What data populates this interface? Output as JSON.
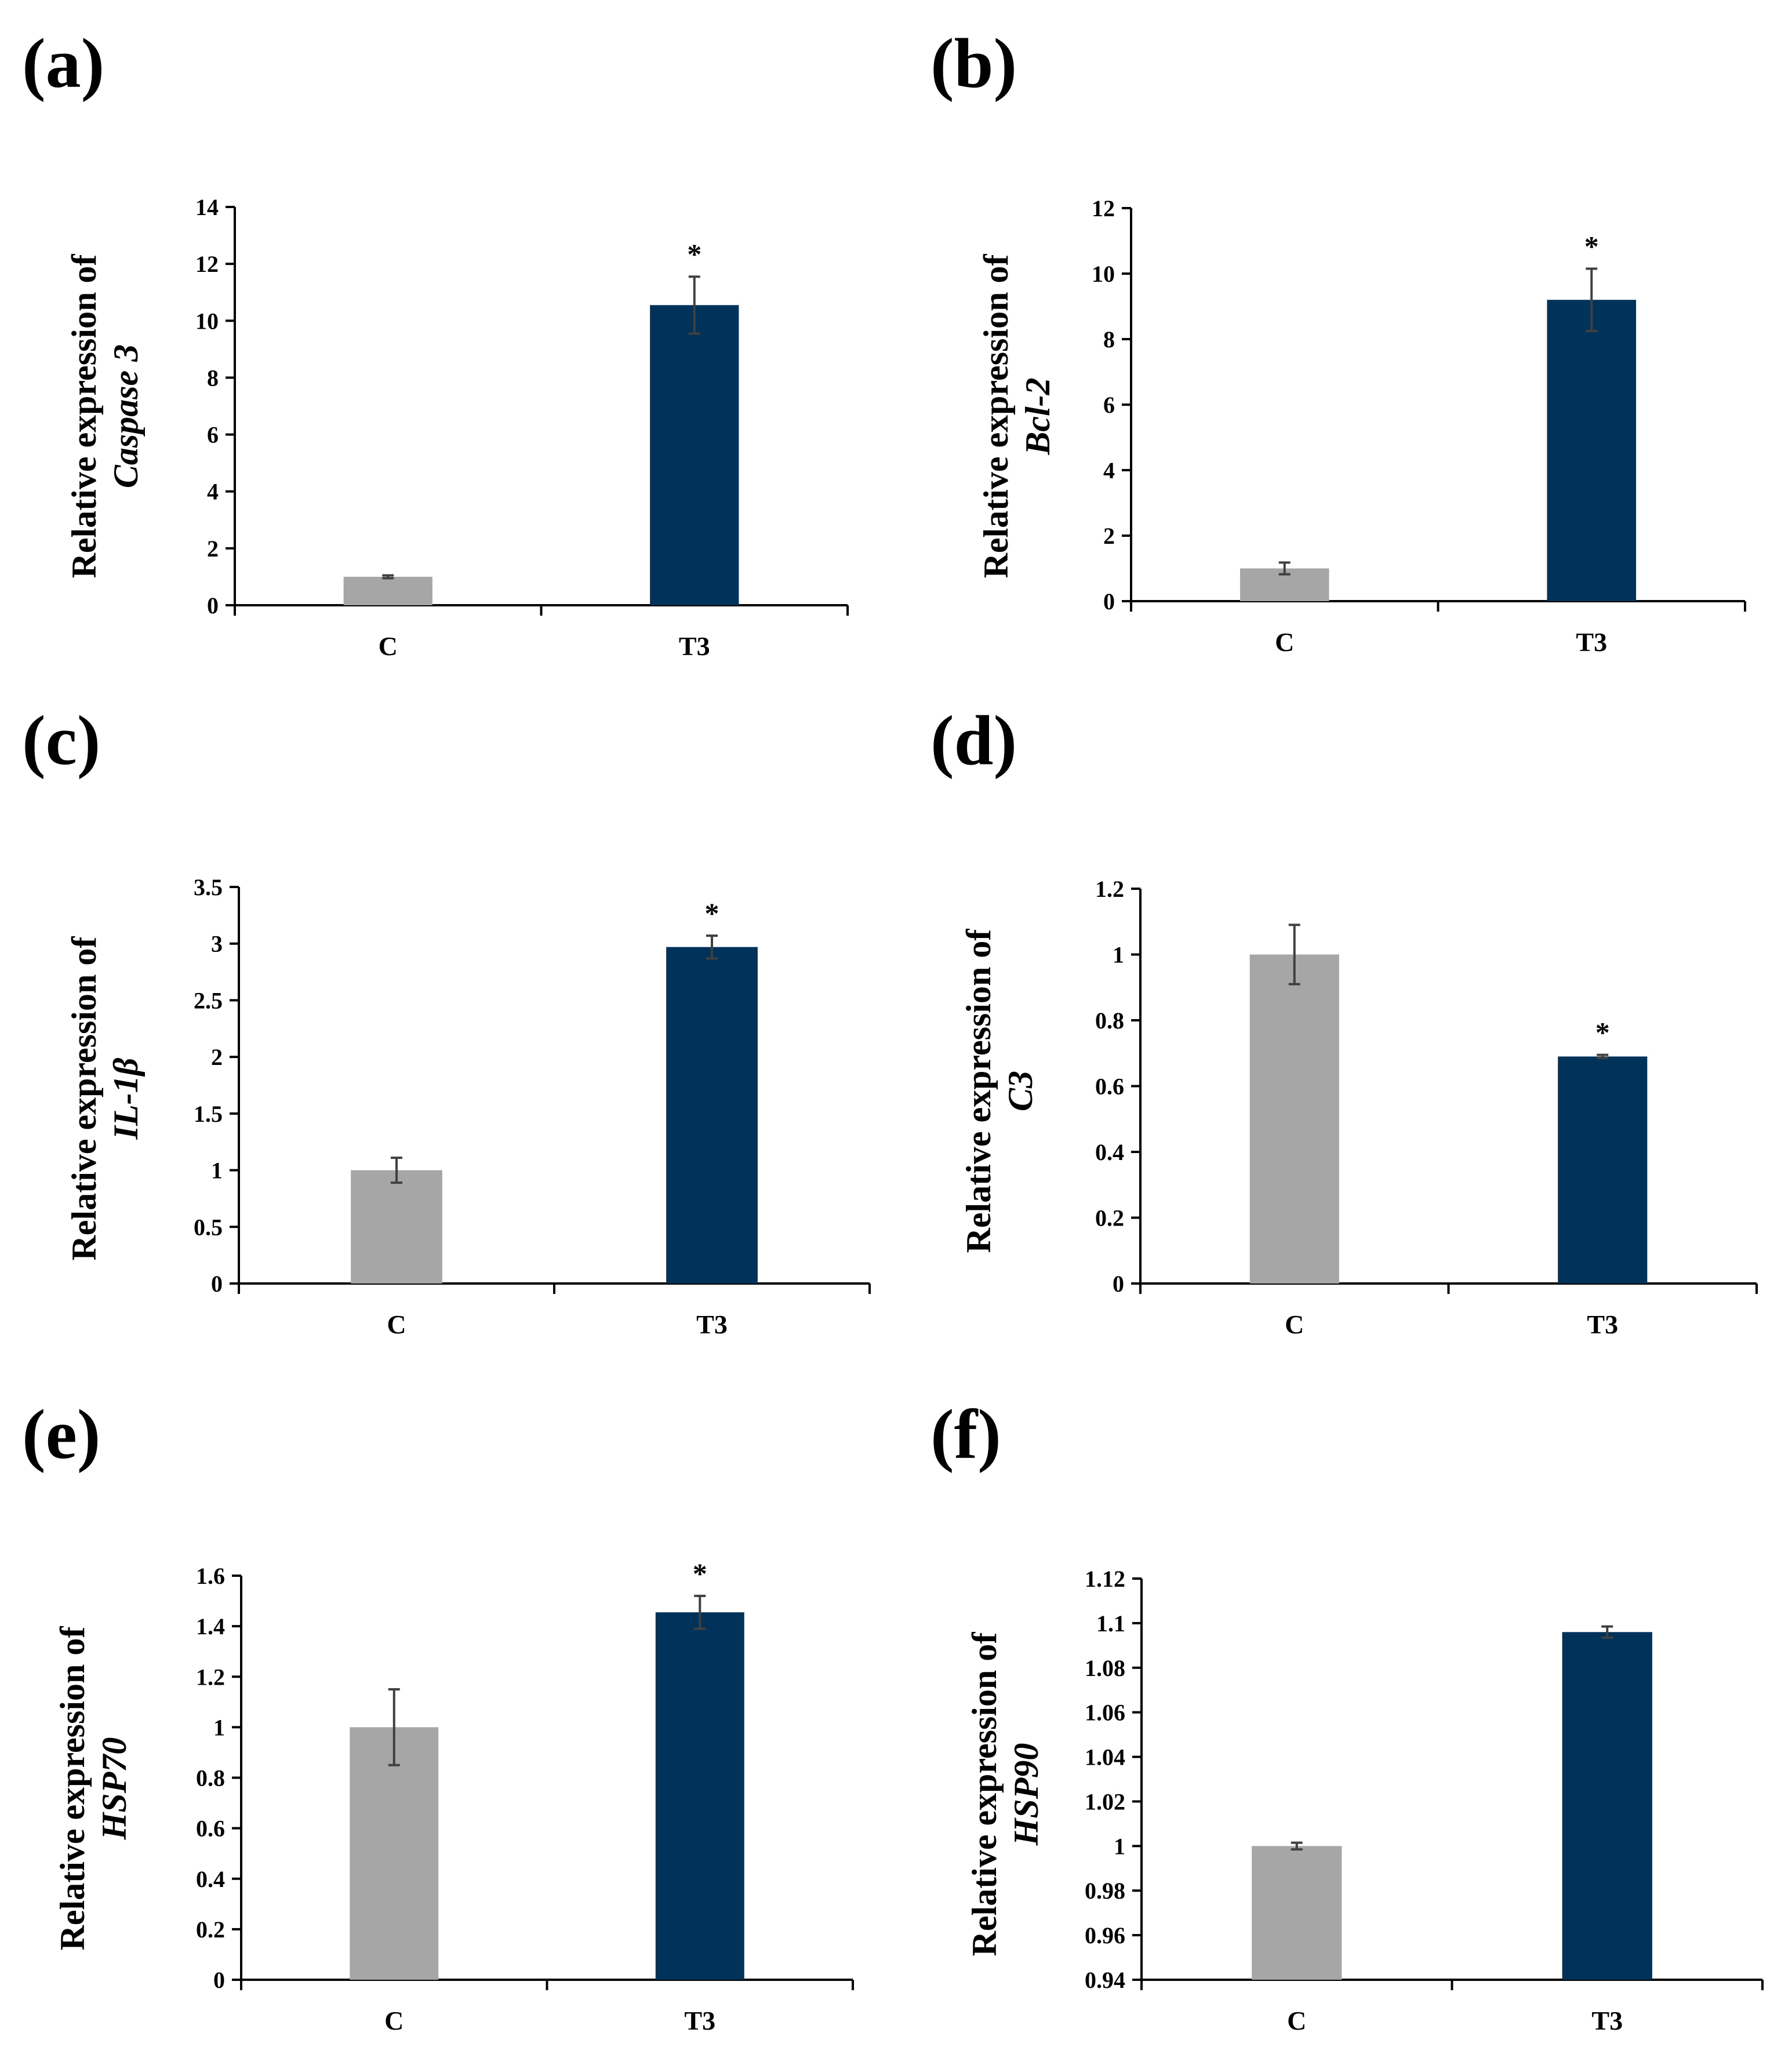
{
  "colors": {
    "control": "#a6a6a6",
    "treatment": "#00325a",
    "axis": "#000000",
    "errorbar": "#404040"
  },
  "chart_data": [
    {
      "type": "bar",
      "panel": "(a)",
      "categories": [
        "C",
        "T3"
      ],
      "values": [
        1.0,
        10.55
      ],
      "errors": [
        0.05,
        1.0
      ],
      "significance": [
        "",
        "*"
      ],
      "ylabel": "Relative expression of",
      "ylabel_gene": "Caspase 3",
      "ylim": [
        0,
        14
      ],
      "yticks": [
        "0",
        "2",
        "4",
        "6",
        "8",
        "10",
        "12",
        "14"
      ]
    },
    {
      "type": "bar",
      "panel": "(b)",
      "categories": [
        "C",
        "T3"
      ],
      "values": [
        1.0,
        9.2
      ],
      "errors": [
        0.18,
        0.95
      ],
      "significance": [
        "",
        "*"
      ],
      "ylabel": "Relative expression of",
      "ylabel_gene": "Bcl-2",
      "ylim": [
        0,
        12
      ],
      "yticks": [
        "0",
        "2",
        "4",
        "6",
        "8",
        "10",
        "12"
      ]
    },
    {
      "type": "bar",
      "panel": "(c)",
      "categories": [
        "C",
        "T3"
      ],
      "values": [
        1.0,
        2.97
      ],
      "errors": [
        0.11,
        0.1
      ],
      "significance": [
        "",
        "*"
      ],
      "ylabel": "Relative expression of",
      "ylabel_gene": "IL-1β",
      "ylim": [
        0,
        3.5
      ],
      "yticks": [
        "0",
        "0.5",
        "1",
        "1.5",
        "2",
        "2.5",
        "3",
        "3.5"
      ]
    },
    {
      "type": "bar",
      "panel": "(d)",
      "categories": [
        "C",
        "T3"
      ],
      "values": [
        1.0,
        0.69
      ],
      "errors": [
        0.09,
        0.005
      ],
      "significance": [
        "",
        "*"
      ],
      "ylabel": "Relative expression of",
      "ylabel_gene": "C3",
      "ylim": [
        0,
        1.2
      ],
      "yticks": [
        "0",
        "0.2",
        "0.4",
        "0.6",
        "0.8",
        "1",
        "1.2"
      ]
    },
    {
      "type": "bar",
      "panel": "(e)",
      "categories": [
        "C",
        "T3"
      ],
      "values": [
        1.0,
        1.455
      ],
      "errors": [
        0.15,
        0.065
      ],
      "significance": [
        "",
        "*"
      ],
      "ylabel": "Relative expression of",
      "ylabel_gene": "HSP70",
      "ylim": [
        0,
        1.6
      ],
      "yticks": [
        "0",
        "0.2",
        "0.4",
        "0.6",
        "0.8",
        "1",
        "1.2",
        "1.4",
        "1.6"
      ]
    },
    {
      "type": "bar",
      "panel": "(f)",
      "categories": [
        "C",
        "T3"
      ],
      "values": [
        1.0,
        1.096
      ],
      "errors": [
        0.0015,
        0.0025
      ],
      "significance": [
        "",
        ""
      ],
      "ylabel": "Relative expression of",
      "ylabel_gene": "HSP90",
      "ylim": [
        0.94,
        1.12
      ],
      "yticks": [
        "0.94",
        "0.96",
        "0.98",
        "1",
        "1.02",
        "1.04",
        "1.06",
        "1.08",
        "1.1",
        "1.12"
      ]
    }
  ]
}
